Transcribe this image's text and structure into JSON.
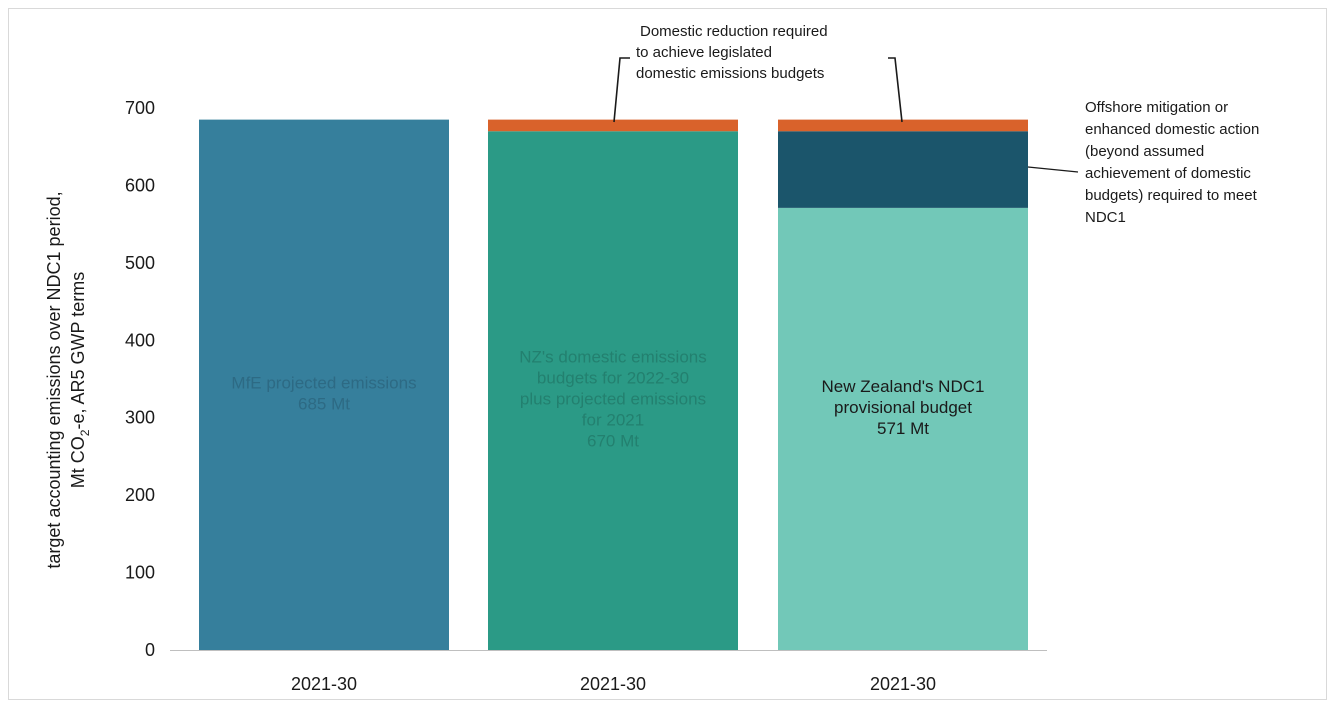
{
  "chart_data": {
    "type": "bar",
    "stacked": true,
    "categories": [
      "2021-30",
      "2021-30",
      "2021-30"
    ],
    "ylim": [
      0,
      700
    ],
    "yticks": [
      0,
      100,
      200,
      300,
      400,
      500,
      600,
      700
    ],
    "ylabel_line1": "target accounting emissions over NDC1 period,",
    "ylabel_line2_pre": "Mt CO",
    "ylabel_line2_sub": "2",
    "ylabel_line2_post": "-e, AR5 GWP terms",
    "grid": false,
    "legend": "none",
    "bars": [
      {
        "category": "2021-30",
        "segments": [
          {
            "value": 685,
            "color": "#367f9c",
            "label": [
              "MfE projected emissions",
              "685 Mt"
            ],
            "label_color": "#2d6a84"
          }
        ]
      },
      {
        "category": "2021-30",
        "segments": [
          {
            "value": 670,
            "color": "#2b9a86",
            "label": [
              "NZ's domestic emissions",
              "budgets for 2022-30",
              "plus projected emissions",
              "for 2021",
              "670 Mt"
            ],
            "label_color": "#23806f"
          },
          {
            "value": 15,
            "color": "#d9622b"
          }
        ]
      },
      {
        "category": "2021-30",
        "segments": [
          {
            "value": 571,
            "color": "#72c8b8",
            "label": [
              "New Zealand's NDC1",
              "provisional budget",
              "571 Mt"
            ],
            "label_color": "#1a1a1a"
          },
          {
            "value": 99,
            "color": "#1b556b"
          },
          {
            "value": 15,
            "color": "#d9622b"
          }
        ]
      }
    ],
    "annotations": [
      {
        "target": "orange segments",
        "lines": [
          "Domestic reduction required",
          "to achieve legislated",
          "domestic emissions budgets"
        ]
      },
      {
        "target": "dark segment",
        "lines": [
          "Offshore mitigation or",
          "enhanced domestic action",
          "(beyond assumed",
          "achievement of domestic",
          "budgets) required to meet",
          "NDC1"
        ]
      }
    ]
  }
}
